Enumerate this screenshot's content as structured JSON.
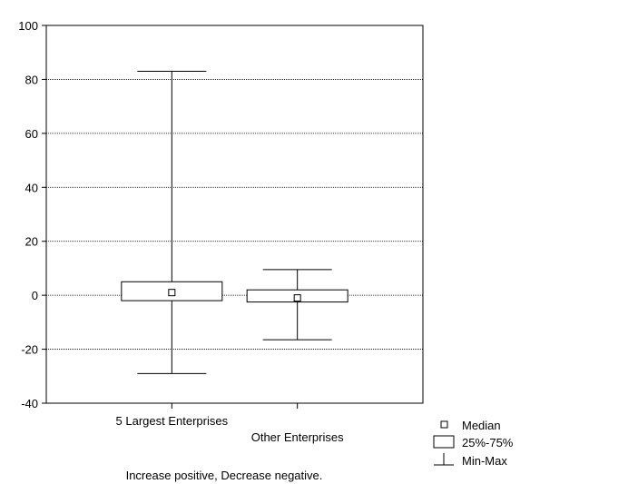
{
  "chart_data": {
    "type": "boxplot",
    "title": "",
    "xlabel": "",
    "ylabel": "",
    "ylim": [
      -40,
      100
    ],
    "yticks": [
      -40,
      -20,
      0,
      20,
      40,
      60,
      80,
      100
    ],
    "grid": true,
    "categories": [
      "5 Largest Enterprises",
      "Other Enterprises"
    ],
    "series": [
      {
        "category": "5 Largest Enterprises",
        "min": -29,
        "q1": -2,
        "median": 1,
        "q3": 5,
        "max": 83
      },
      {
        "category": "Other Enterprises",
        "min": -16.5,
        "q1": -2.5,
        "median": -1,
        "q3": 2,
        "max": 9.5
      }
    ],
    "legend": {
      "placement": "bottom-right",
      "items": [
        {
          "symbol": "median-marker",
          "label": "Median"
        },
        {
          "symbol": "box",
          "label": "25%-75%"
        },
        {
          "symbol": "whisker",
          "label": "Min-Max"
        }
      ]
    },
    "note": "Increase positive, Decrease negative."
  }
}
